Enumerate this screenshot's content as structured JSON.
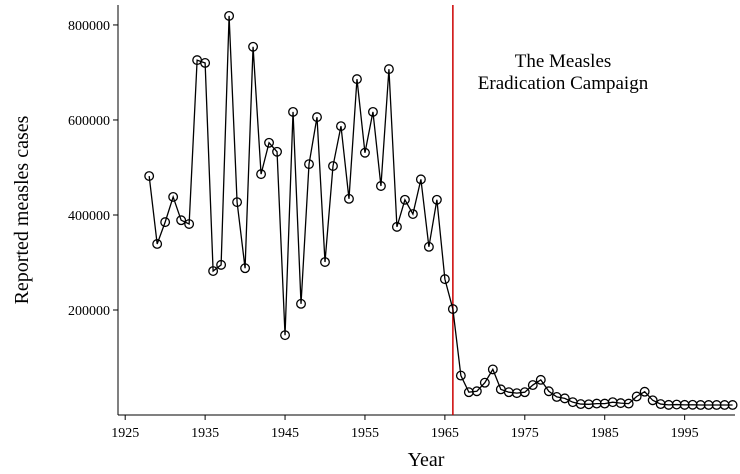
{
  "chart_data": {
    "type": "line",
    "x_label": "Year",
    "y_label": "Reported measles cases",
    "annotation": [
      "The Measles",
      "Eradication Campaign"
    ],
    "vline": {
      "x": 1966,
      "color": "#cc0000"
    },
    "x": [
      1928,
      1929,
      1930,
      1931,
      1932,
      1933,
      1934,
      1935,
      1936,
      1937,
      1938,
      1939,
      1940,
      1941,
      1942,
      1943,
      1944,
      1945,
      1946,
      1947,
      1948,
      1949,
      1950,
      1951,
      1952,
      1953,
      1954,
      1955,
      1956,
      1957,
      1958,
      1959,
      1960,
      1961,
      1962,
      1963,
      1964,
      1965,
      1966,
      1967,
      1968,
      1969,
      1970,
      1971,
      1972,
      1973,
      1974,
      1975,
      1976,
      1977,
      1978,
      1979,
      1980,
      1981,
      1982,
      1983,
      1984,
      1985,
      1986,
      1987,
      1988,
      1989,
      1990,
      1991,
      1992,
      1993,
      1994,
      1995,
      1996,
      1997,
      1998,
      1999,
      2000,
      2001
    ],
    "series": [
      {
        "name": "Reported measles cases",
        "color": "#000000",
        "values": [
          482000,
          339000,
          385000,
          438000,
          389000,
          381000,
          726000,
          720000,
          282000,
          295000,
          819000,
          427000,
          288000,
          754000,
          486000,
          552000,
          533000,
          147000,
          617000,
          213000,
          507000,
          606000,
          301000,
          503000,
          587000,
          434000,
          686000,
          531000,
          617000,
          461000,
          707000,
          375000,
          432000,
          402000,
          475000,
          333000,
          432000,
          265000,
          202000,
          62000,
          27000,
          29000,
          47000,
          75000,
          33000,
          27000,
          25000,
          27000,
          42000,
          53000,
          29000,
          17000,
          14000,
          6000,
          2000,
          1500,
          3000,
          3000,
          6000,
          4000,
          3000,
          18000,
          28000,
          10000,
          2000,
          300,
          1000,
          300,
          500,
          100,
          100,
          100,
          100,
          100
        ]
      }
    ],
    "xlim": [
      1924.1,
      2001.3
    ],
    "ylim": [
      -21000,
      842000
    ],
    "xticks": [
      1925,
      1935,
      1945,
      1955,
      1965,
      1975,
      1985,
      1995
    ],
    "yticks": [
      200000,
      400000,
      600000,
      800000
    ]
  }
}
